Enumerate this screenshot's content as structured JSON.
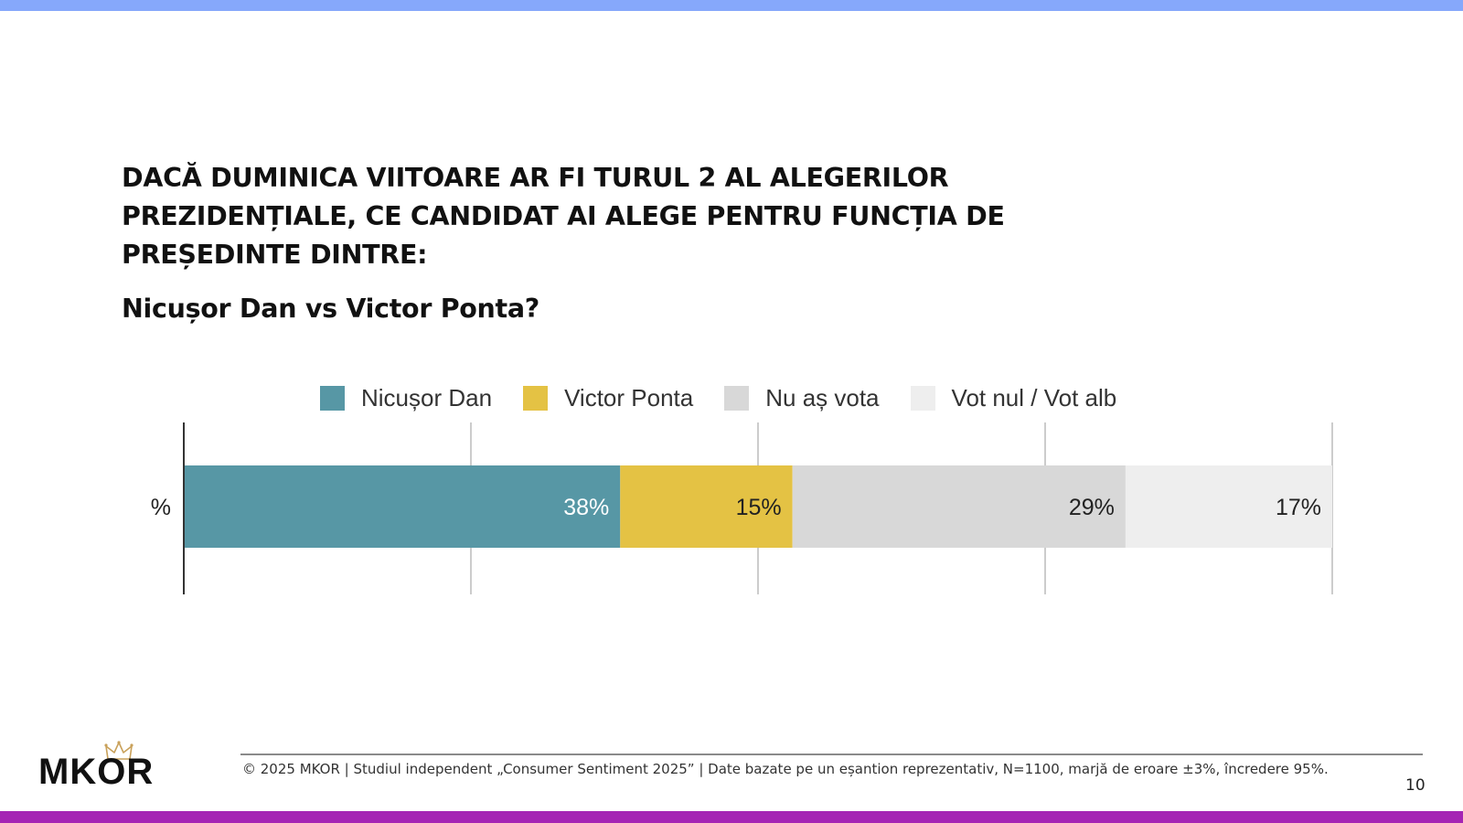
{
  "slide": {
    "question": "DACĂ DUMINICA VIITOARE AR FI TURUL 2 AL ALEGERILOR PREZIDENȚIALE, CE CANDIDAT AI ALEGE PENTRU FUNCȚIA DE PREȘEDINTE DINTRE:",
    "subquestion": "Nicușor Dan vs Victor Ponta?",
    "footer": "© 2025 MKOR | Studiul independent „Consumer Sentiment 2025” | Date bazate pe un eșantion reprezentativ, N=1100, marjă de eroare ±3%, încredere 95%.",
    "page_number": "10",
    "logo": "MKOR"
  },
  "colors": {
    "top_bar": "#86a8fb",
    "bottom_bar": "#a524b4",
    "gridline": "#cccccc",
    "axis": "#333333"
  },
  "chart_data": {
    "type": "bar",
    "orientation": "horizontal",
    "stacked": true,
    "categories": [
      "%"
    ],
    "series": [
      {
        "name": "Nicușor Dan",
        "values": [
          38
        ],
        "label": "38%",
        "color": "#5797a5",
        "label_color": "#ffffff"
      },
      {
        "name": "Victor Ponta",
        "values": [
          15
        ],
        "label": "15%",
        "color": "#e4c244",
        "label_color": "#222222"
      },
      {
        "name": "Nu aș vota",
        "values": [
          29
        ],
        "label": "29%",
        "color": "#d8d8d8",
        "label_color": "#222222"
      },
      {
        "name": "Vot nul / Vot alb",
        "values": [
          17
        ],
        "label": "17%",
        "color": "#eeeeee",
        "label_color": "#222222"
      }
    ],
    "xlim": [
      0,
      100
    ],
    "gridlines": [
      0,
      25,
      50,
      75,
      100
    ],
    "grid": true,
    "legend_position": "top"
  }
}
